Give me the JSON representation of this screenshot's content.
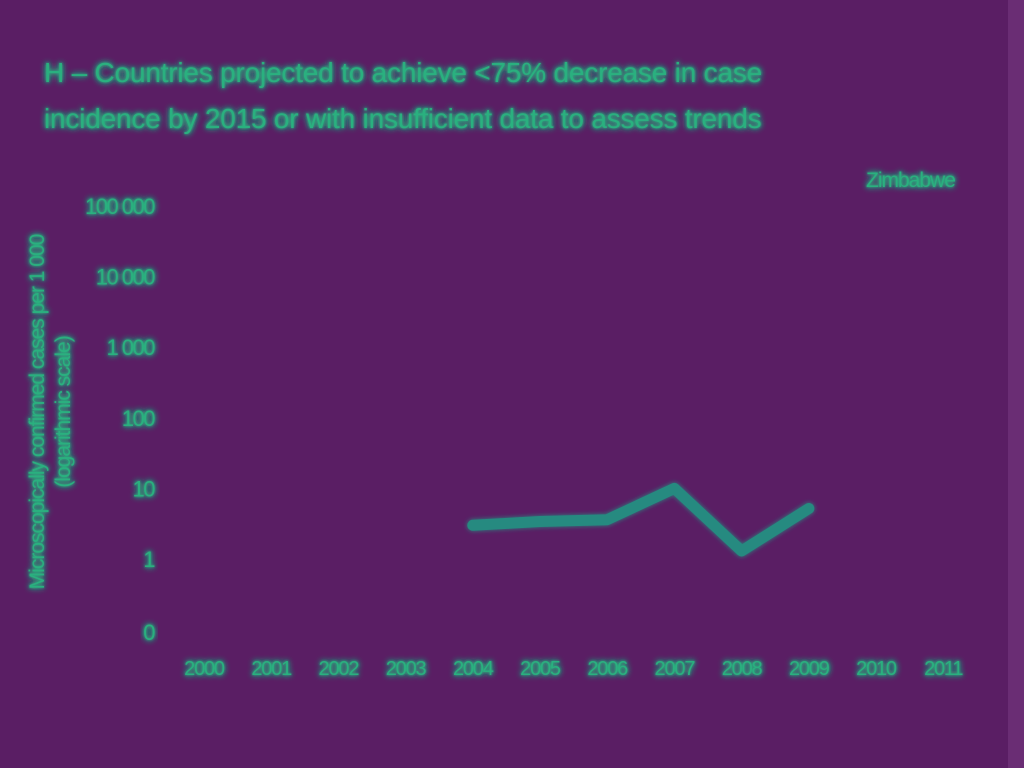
{
  "chart_data": {
    "type": "line",
    "title": "H – Countries projected to achieve <75% decrease in case incidence by 2015 or with insufficient data to assess trends",
    "title_lines": [
      "H – Countries projected to achieve <75% decrease in case",
      "incidence by 2015 or with insufficient data to assess trends"
    ],
    "ylabel": "Microscopically confirmed cases per 1 000",
    "ylabel_sub": "(logarithmic scale)",
    "y_scale": "log",
    "y_ticks": [
      "100 000",
      "10 000",
      "1 000",
      "100",
      "10",
      "1",
      "0"
    ],
    "x": [
      "2000",
      "2001",
      "2002",
      "2003",
      "2004",
      "2005",
      "2006",
      "2007",
      "2008",
      "2009",
      "2010",
      "2011"
    ],
    "series": [
      {
        "name": "Zimbabwe",
        "color": "#258a80",
        "values": [
          null,
          null,
          null,
          null,
          3.0,
          3.4,
          3.6,
          10,
          1.3,
          5.2,
          null,
          null
        ]
      }
    ],
    "grid": true,
    "legend": "top-right",
    "text_color": "#2bb07f",
    "background_color": "#5a1e64",
    "grid_color": "#5e5a9a"
  }
}
